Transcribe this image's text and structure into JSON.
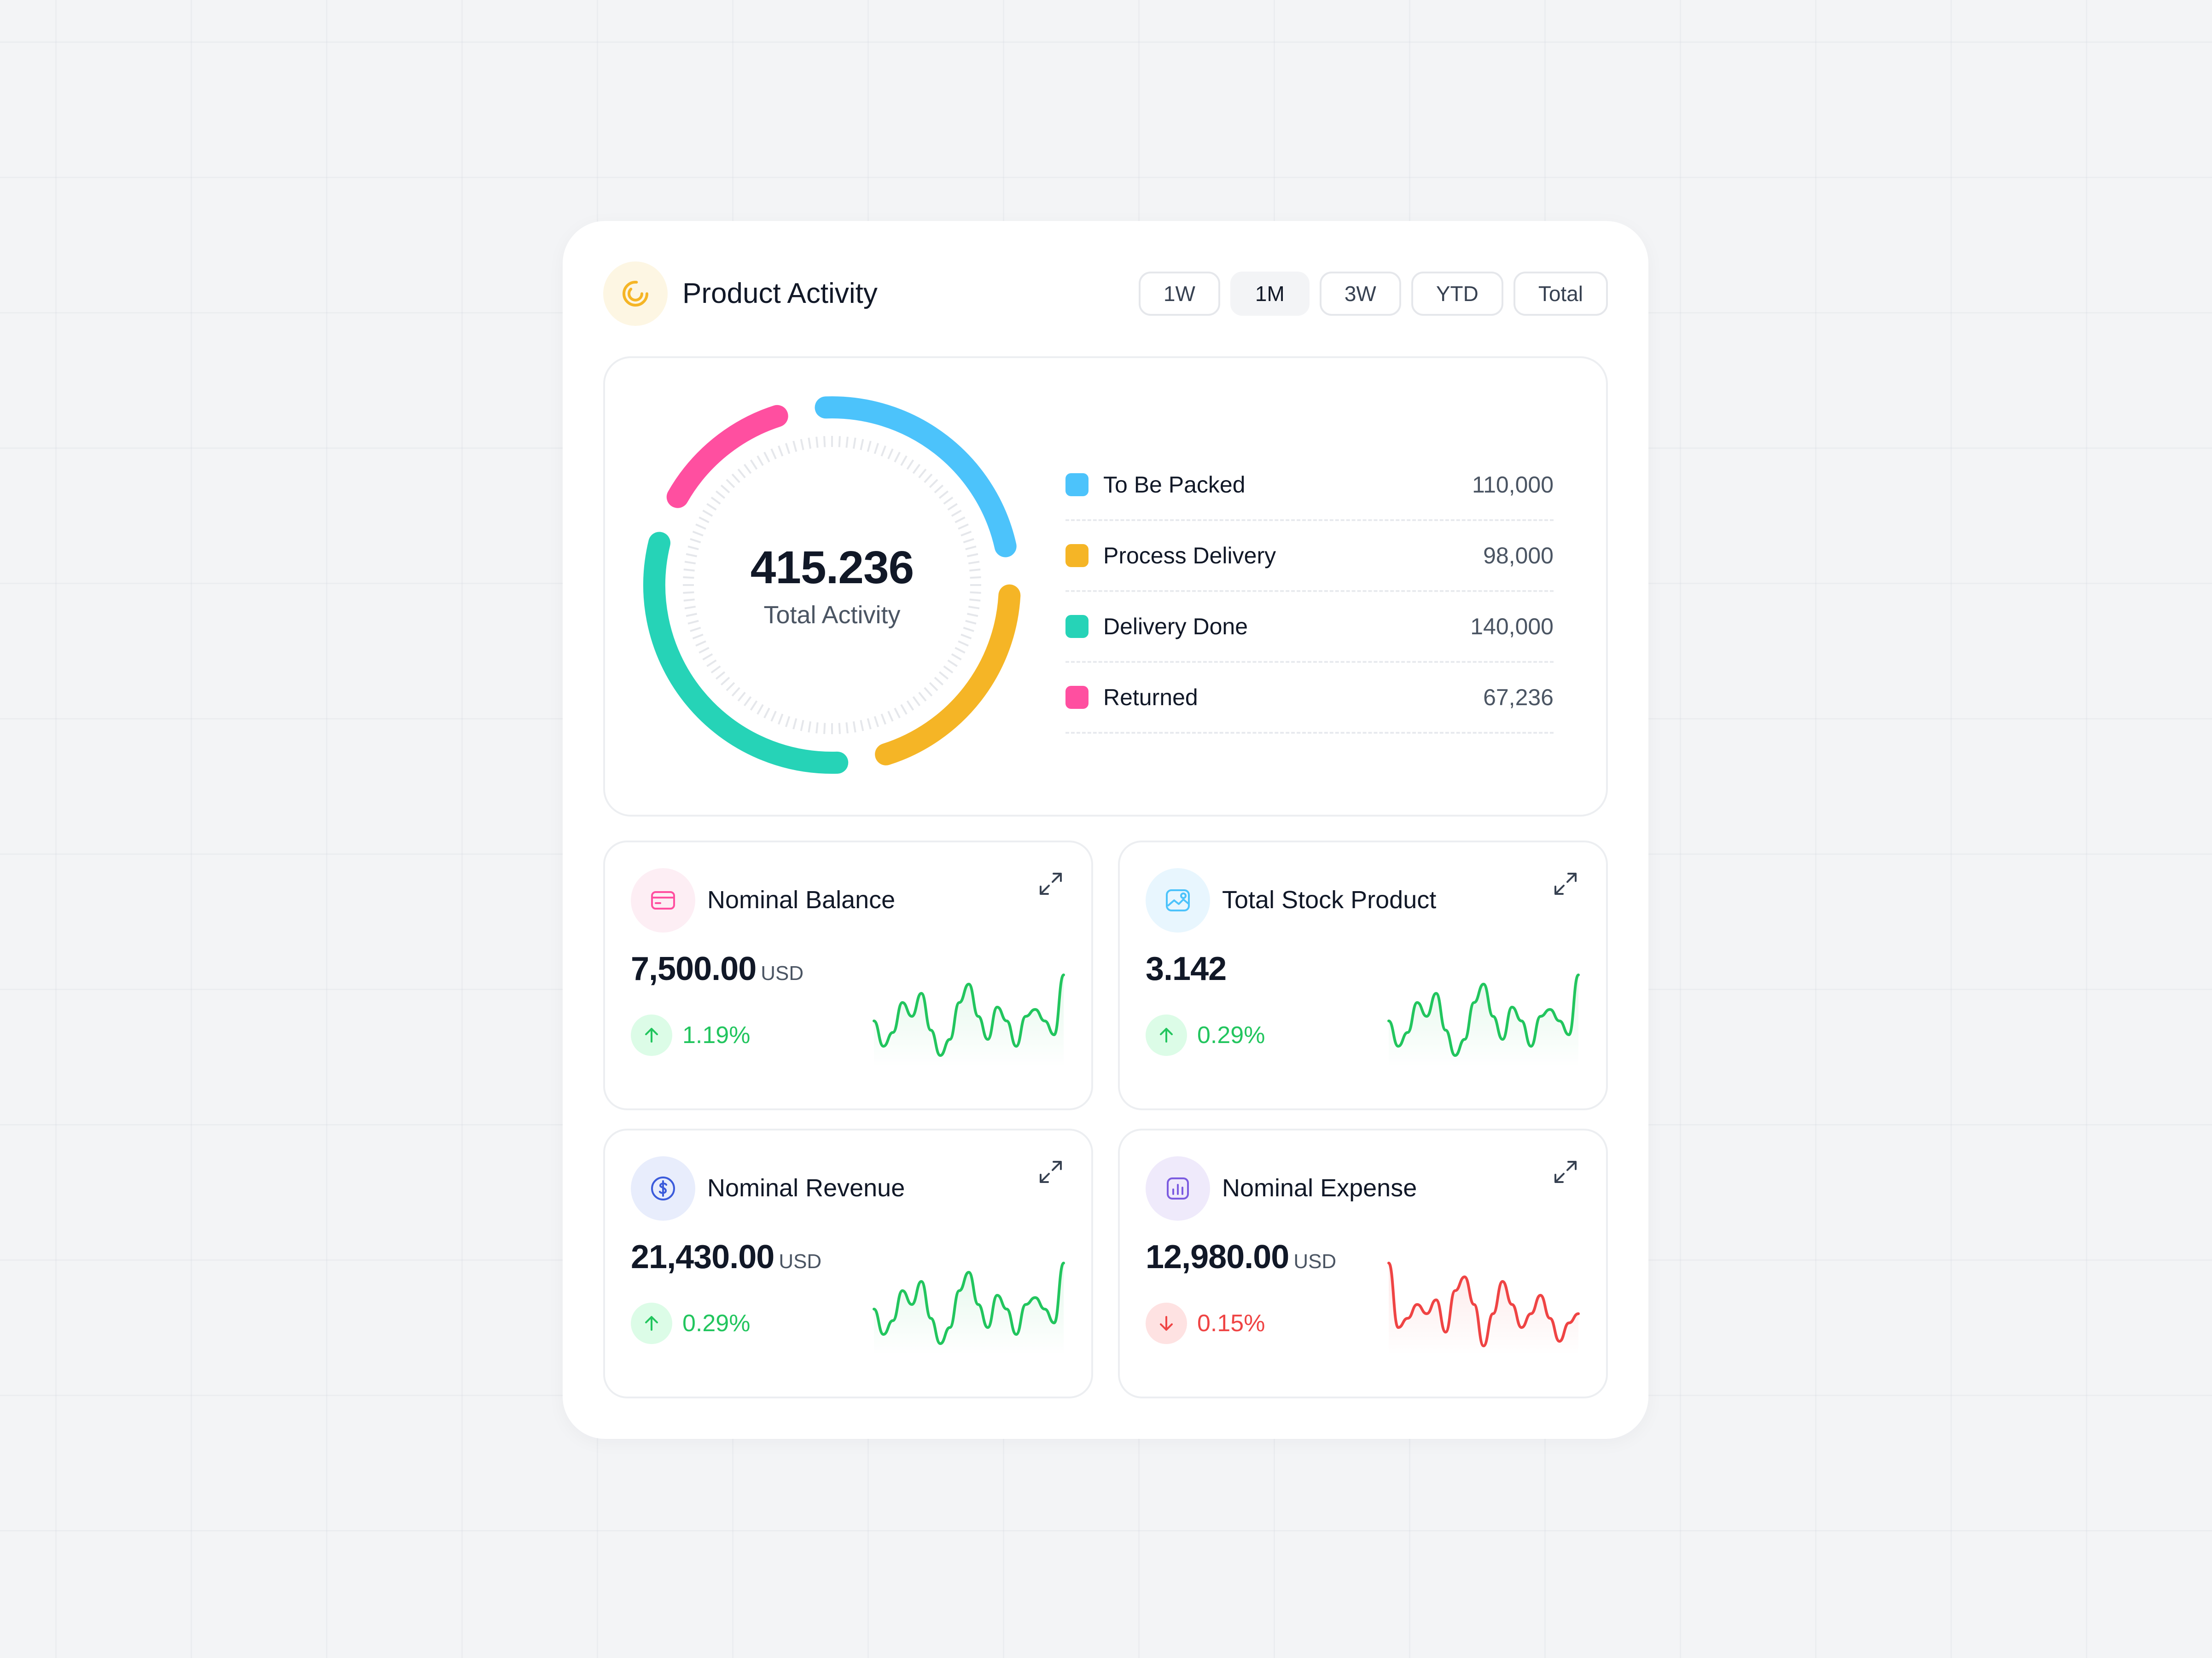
{
  "header": {
    "title": "Product Activity",
    "logo_icon": "activity-spiral-icon",
    "periods": [
      "1W",
      "1M",
      "3W",
      "YTD",
      "Total"
    ],
    "selected_period": "1M"
  },
  "activity": {
    "total_value": "415.236",
    "total_label": "Total Activity",
    "items": [
      {
        "label": "To Be Packed",
        "value": "110,000",
        "color": "#4cc3fb"
      },
      {
        "label": "Process Delivery",
        "value": "98,000",
        "color": "#f5b526"
      },
      {
        "label": "Delivery Done",
        "value": "140,000",
        "color": "#26d3b7"
      },
      {
        "label": "Returned",
        "value": "67,236",
        "color": "#ff4fa0"
      }
    ]
  },
  "chart_data": {
    "type": "pie",
    "categories": [
      "To Be Packed",
      "Process Delivery",
      "Delivery Done",
      "Returned"
    ],
    "values": [
      110000,
      98000,
      140000,
      67236
    ],
    "colors": [
      "#4cc3fb",
      "#f5b526",
      "#26d3b7",
      "#ff4fa0"
    ],
    "donut": true,
    "center_value": "415.236",
    "center_label": "Total Activity"
  },
  "stats": [
    {
      "title": "Nominal Balance",
      "value": "7,500.00",
      "unit": "USD",
      "change": "1.19%",
      "direction": "up",
      "icon": "credit-card-icon",
      "color": "#ff4fa0",
      "trend_color": "#22c55e"
    },
    {
      "title": "Total Stock Product",
      "value": "3.142",
      "unit": "",
      "change": "0.29%",
      "direction": "up",
      "icon": "image-icon",
      "color": "#4cc3fb",
      "trend_color": "#22c55e"
    },
    {
      "title": "Nominal Revenue",
      "value": "21,430.00",
      "unit": "USD",
      "change": "0.29%",
      "direction": "up",
      "icon": "dollar-circle-icon",
      "color": "#3b5bdb",
      "trend_color": "#22c55e"
    },
    {
      "title": "Nominal Expense",
      "value": "12,980.00",
      "unit": "USD",
      "change": "0.15%",
      "direction": "down",
      "icon": "bar-chart-icon",
      "color": "#7c5ce0",
      "trend_color": "#ef4444"
    }
  ]
}
